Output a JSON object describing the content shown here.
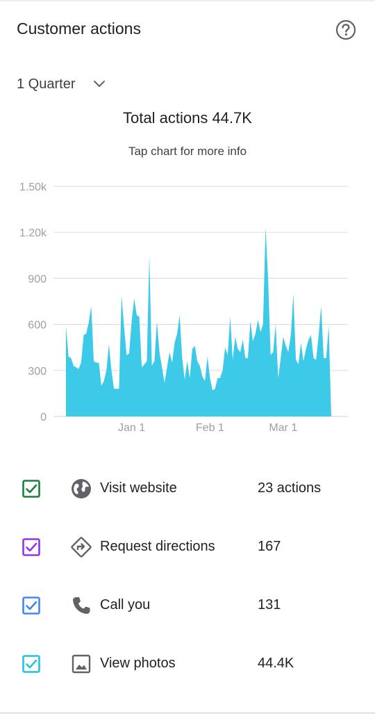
{
  "header": {
    "title": "Customer actions",
    "help_icon": "help-circle-icon"
  },
  "period": {
    "label": "1 Quarter",
    "icon": "chevron-down-icon"
  },
  "summary": {
    "total": "Total actions 44.7K",
    "hint": "Tap chart for more info"
  },
  "colors": {
    "area": "#3dc9e8",
    "grid": "#e0e0e0",
    "axis_text": "#9e9e9e"
  },
  "chart_data": {
    "type": "area",
    "y_ticks": [
      "0",
      "300",
      "600",
      "900",
      "1.20k",
      "1.50k"
    ],
    "ylim": [
      0,
      1500
    ],
    "x_ticks": [
      {
        "label": "Jan 1",
        "day": 26
      },
      {
        "label": "Feb 1",
        "day": 57
      },
      {
        "label": "Mar 1",
        "day": 86
      }
    ],
    "grid": true,
    "values": [
      590,
      390,
      380,
      330,
      320,
      310,
      350,
      530,
      540,
      610,
      720,
      360,
      350,
      350,
      200,
      230,
      300,
      470,
      300,
      180,
      180,
      180,
      790,
      580,
      400,
      410,
      620,
      770,
      660,
      650,
      320,
      340,
      360,
      1050,
      330,
      360,
      620,
      420,
      320,
      220,
      320,
      420,
      350,
      480,
      540,
      660,
      380,
      240,
      360,
      250,
      440,
      460,
      360,
      330,
      260,
      230,
      390,
      250,
      170,
      180,
      250,
      250,
      300,
      450,
      400,
      650,
      370,
      520,
      440,
      420,
      500,
      380,
      380,
      620,
      490,
      540,
      630,
      550,
      600,
      1230,
      900,
      400,
      420,
      600,
      250,
      380,
      520,
      460,
      420,
      530,
      800,
      370,
      340,
      480,
      360,
      440,
      500,
      530,
      380,
      370,
      530,
      720,
      380,
      380,
      590,
      0
    ]
  },
  "legend": [
    {
      "label": "Visit website",
      "value": "23 actions",
      "color": "#188038",
      "checked": true,
      "icon": "globe-icon"
    },
    {
      "label": "Request directions",
      "value": "167",
      "color": "#9334e6",
      "checked": true,
      "icon": "directions-icon"
    },
    {
      "label": "Call you",
      "value": "131",
      "color": "#4285f4",
      "checked": true,
      "icon": "phone-icon"
    },
    {
      "label": "View photos",
      "value": "44.4K",
      "color": "#24c1e0",
      "checked": true,
      "icon": "photo-icon"
    }
  ]
}
